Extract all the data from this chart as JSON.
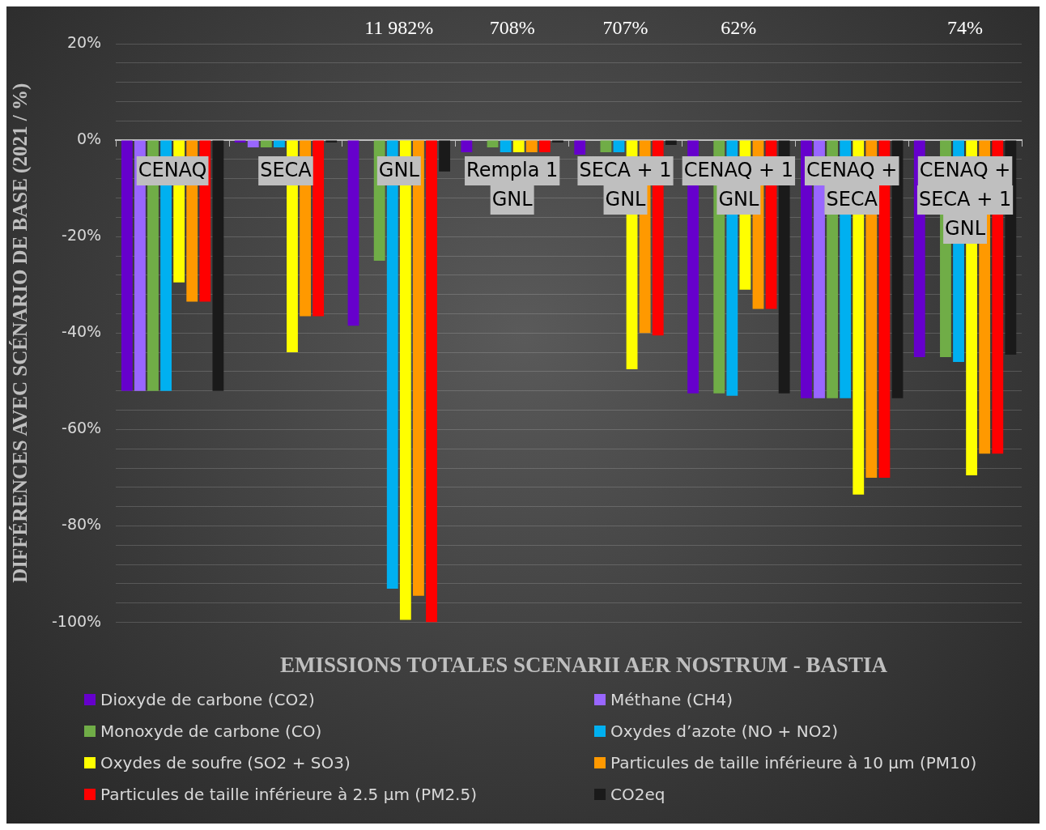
{
  "chart_data": {
    "type": "bar",
    "xlabel": "EMISSIONS TOTALES SCENARII AER NOSTRUM - BASTIA",
    "ylabel": "DIFFÉRENCES AVEC SCÉNARIO DE BASE (2021 / %)",
    "categories": [
      "CENAQ",
      "SECA",
      "GNL",
      "Rempla 1 GNL",
      "SECA + 1 GNL",
      "CENAQ + 1 GNL",
      "CENAQ + SECA",
      "CENAQ + SECA + 1 GNL"
    ],
    "series": [
      {
        "name": "Dioxyde de carbone (CO2)",
        "color": "#6600cc",
        "values": [
          -52,
          -0.5,
          -38.5,
          -2.5,
          -3,
          -52.5,
          -53.5,
          -45
        ]
      },
      {
        "name": "Méthane (CH4)",
        "color": "#9966ff",
        "values": [
          -52,
          -1.5,
          null,
          null,
          null,
          null,
          -53.5,
          null
        ]
      },
      {
        "name": "Monoxyde de carbone (CO)",
        "color": "#70ad47",
        "values": [
          -52,
          -1.5,
          -25,
          -1.5,
          -2.5,
          -52.5,
          -53.5,
          -45
        ]
      },
      {
        "name": "Oxydes d’azote (NO + NO2)",
        "color": "#00b0f0",
        "values": [
          -52,
          -1.5,
          -93,
          -2.5,
          -2.5,
          -53,
          -53.5,
          -46
        ]
      },
      {
        "name": "Oxydes de soufre (SO2 + SO3)",
        "color": "#ffff00",
        "values": [
          -29.5,
          -44,
          -99.5,
          -2.5,
          -47.5,
          -31,
          -73.5,
          -69.5
        ]
      },
      {
        "name": "Particules de taille inférieure à 10 µm (PM10)",
        "color": "#ff9900",
        "values": [
          -33.5,
          -36.5,
          -94.5,
          -2.5,
          -40,
          -35,
          -70,
          -65
        ]
      },
      {
        "name": "Particules de taille inférieure à 2.5 µm (PM2.5)",
        "color": "#ff0000",
        "values": [
          -33.5,
          -36.5,
          -100,
          -2.5,
          -40.5,
          -35,
          -70,
          -65
        ]
      },
      {
        "name": "CO2eq",
        "color": "#1a1a1a",
        "values": [
          -52,
          -0.5,
          -6.5,
          -0.5,
          -1,
          -52.5,
          -53.5,
          -44.5
        ]
      }
    ],
    "ylim": [
      -100,
      20
    ],
    "yticks": [
      {
        "value": -100,
        "label": "-100%"
      },
      {
        "value": -96,
        "label": null
      },
      {
        "value": -92,
        "label": null
      },
      {
        "value": -88,
        "label": null
      },
      {
        "value": -84,
        "label": null
      },
      {
        "value": -80,
        "label": "-80%"
      },
      {
        "value": -76,
        "label": null
      },
      {
        "value": -72,
        "label": null
      },
      {
        "value": -68,
        "label": null
      },
      {
        "value": -64,
        "label": null
      },
      {
        "value": -60,
        "label": "-60%"
      },
      {
        "value": -56,
        "label": null
      },
      {
        "value": -52,
        "label": null
      },
      {
        "value": -48,
        "label": null
      },
      {
        "value": -44,
        "label": null
      },
      {
        "value": -40,
        "label": "-40%"
      },
      {
        "value": -36,
        "label": null
      },
      {
        "value": -32,
        "label": null
      },
      {
        "value": -28,
        "label": null
      },
      {
        "value": -24,
        "label": null
      },
      {
        "value": -20,
        "label": "-20%"
      },
      {
        "value": -16,
        "label": null
      },
      {
        "value": -12,
        "label": null
      },
      {
        "value": -8,
        "label": null
      },
      {
        "value": -4,
        "label": null
      },
      {
        "value": 0,
        "label": "0%"
      },
      {
        "value": 4,
        "label": null
      },
      {
        "value": 8,
        "label": null
      },
      {
        "value": 12,
        "label": null
      },
      {
        "value": 16,
        "label": null
      },
      {
        "value": 20,
        "label": "20%"
      }
    ],
    "annotations": [
      "11 982%",
      "708%",
      "707%",
      "62%",
      "74%"
    ],
    "grid": "y",
    "legend": "bottom"
  }
}
